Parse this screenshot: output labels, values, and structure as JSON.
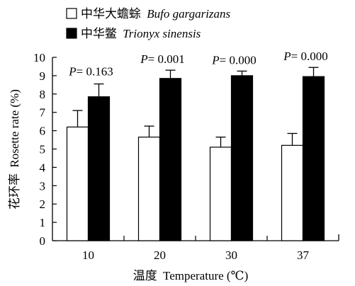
{
  "chart_data": {
    "type": "bar",
    "categories": [
      "10",
      "20",
      "30",
      "37"
    ],
    "series": [
      {
        "name_cn": "中华大蟾蜍",
        "name_latin": "Bufo gargarizans",
        "fill": "#ffffff",
        "values": [
          6.2,
          5.65,
          5.1,
          5.2
        ],
        "errors": [
          0.9,
          0.6,
          0.55,
          0.65
        ]
      },
      {
        "name_cn": "中华鳖",
        "name_latin": "Trionyx sinensis",
        "fill": "#000000",
        "values": [
          7.85,
          8.85,
          9.0,
          8.95
        ],
        "errors": [
          0.7,
          0.45,
          0.25,
          0.5
        ]
      }
    ],
    "p_values": [
      {
        "prefix": "P",
        "text": "= 0.163"
      },
      {
        "prefix": "P",
        "text": "= 0.001"
      },
      {
        "prefix": "P",
        "text": "= 0.000"
      },
      {
        "prefix": "P",
        "text": "= 0.000"
      }
    ],
    "ylabel_cn": "花环率",
    "ylabel_en": "Rosette rate (%)",
    "xlabel_cn": "温度",
    "xlabel_en": "Temperature (℃)",
    "ylim": [
      0,
      10
    ],
    "yticks": [
      0,
      1,
      2,
      3,
      4,
      5,
      6,
      7,
      8,
      9,
      10
    ],
    "grid": false,
    "legend_position": "top-left"
  }
}
